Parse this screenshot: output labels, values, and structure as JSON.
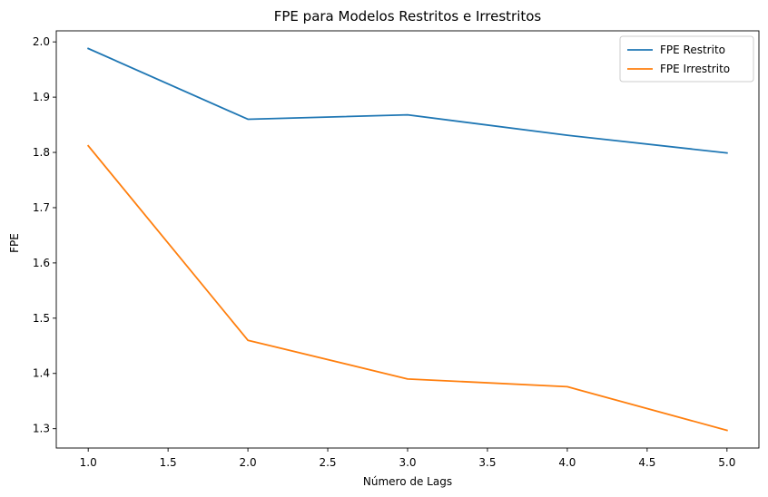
{
  "chart_data": {
    "type": "line",
    "title": "FPE para Modelos Restritos e Irrestritos",
    "xlabel": "Número de Lags",
    "ylabel": "FPE",
    "xlim": [
      0.8,
      5.2
    ],
    "ylim": [
      1.265,
      2.02
    ],
    "grid": false,
    "legend_position": "top-right",
    "x_ticks": [
      1.0,
      1.5,
      2.0,
      2.5,
      3.0,
      3.5,
      4.0,
      4.5,
      5.0
    ],
    "x_tick_labels": [
      "1.0",
      "1.5",
      "2.0",
      "2.5",
      "3.0",
      "3.5",
      "4.0",
      "4.5",
      "5.0"
    ],
    "y_ticks": [
      1.3,
      1.4,
      1.5,
      1.6,
      1.7,
      1.8,
      1.9,
      2.0
    ],
    "y_tick_labels": [
      "1.3",
      "1.4",
      "1.5",
      "1.6",
      "1.7",
      "1.8",
      "1.9",
      "2.0"
    ],
    "x": [
      1,
      2,
      3,
      4,
      5
    ],
    "series": [
      {
        "name": "FPE Restrito",
        "color": "#1f77b4",
        "values": [
          1.988,
          1.86,
          1.868,
          1.831,
          1.799
        ]
      },
      {
        "name": "FPE Irrestrito",
        "color": "#ff7f0e",
        "values": [
          1.812,
          1.46,
          1.39,
          1.376,
          1.297
        ]
      }
    ]
  }
}
